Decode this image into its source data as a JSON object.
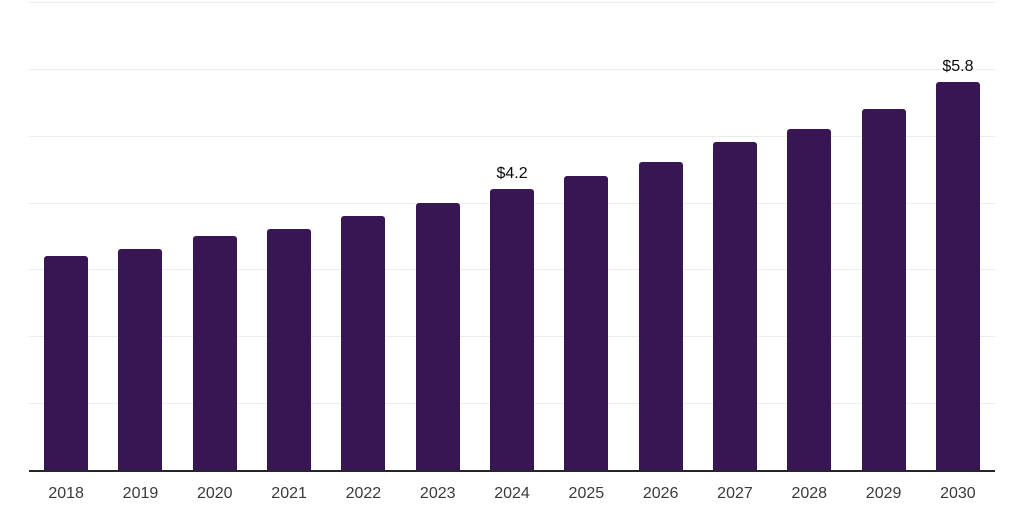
{
  "chart_data": {
    "type": "bar",
    "title": "",
    "xlabel": "",
    "ylabel": "",
    "categories": [
      "2018",
      "2019",
      "2020",
      "2021",
      "2022",
      "2023",
      "2024",
      "2025",
      "2026",
      "2027",
      "2028",
      "2029",
      "2030"
    ],
    "values": [
      3.2,
      3.3,
      3.5,
      3.6,
      3.8,
      4.0,
      4.2,
      4.4,
      4.6,
      4.9,
      5.1,
      5.4,
      5.8
    ],
    "value_labels": [
      "",
      "",
      "",
      "",
      "",
      "",
      "$4.2",
      "",
      "",
      "",
      "",
      "",
      "$5.8"
    ],
    "ylim": [
      0,
      7
    ],
    "grid_step": 1,
    "grid": "horizontal",
    "y_tick_labels_visible": false,
    "legend": "none",
    "colors": {
      "bar": "#381653",
      "gridline": "#ececec",
      "axis_line": "#262626",
      "tick_label": "#3a3a3a",
      "value_label": "#0a0a0a",
      "background": "#ffffff"
    }
  }
}
